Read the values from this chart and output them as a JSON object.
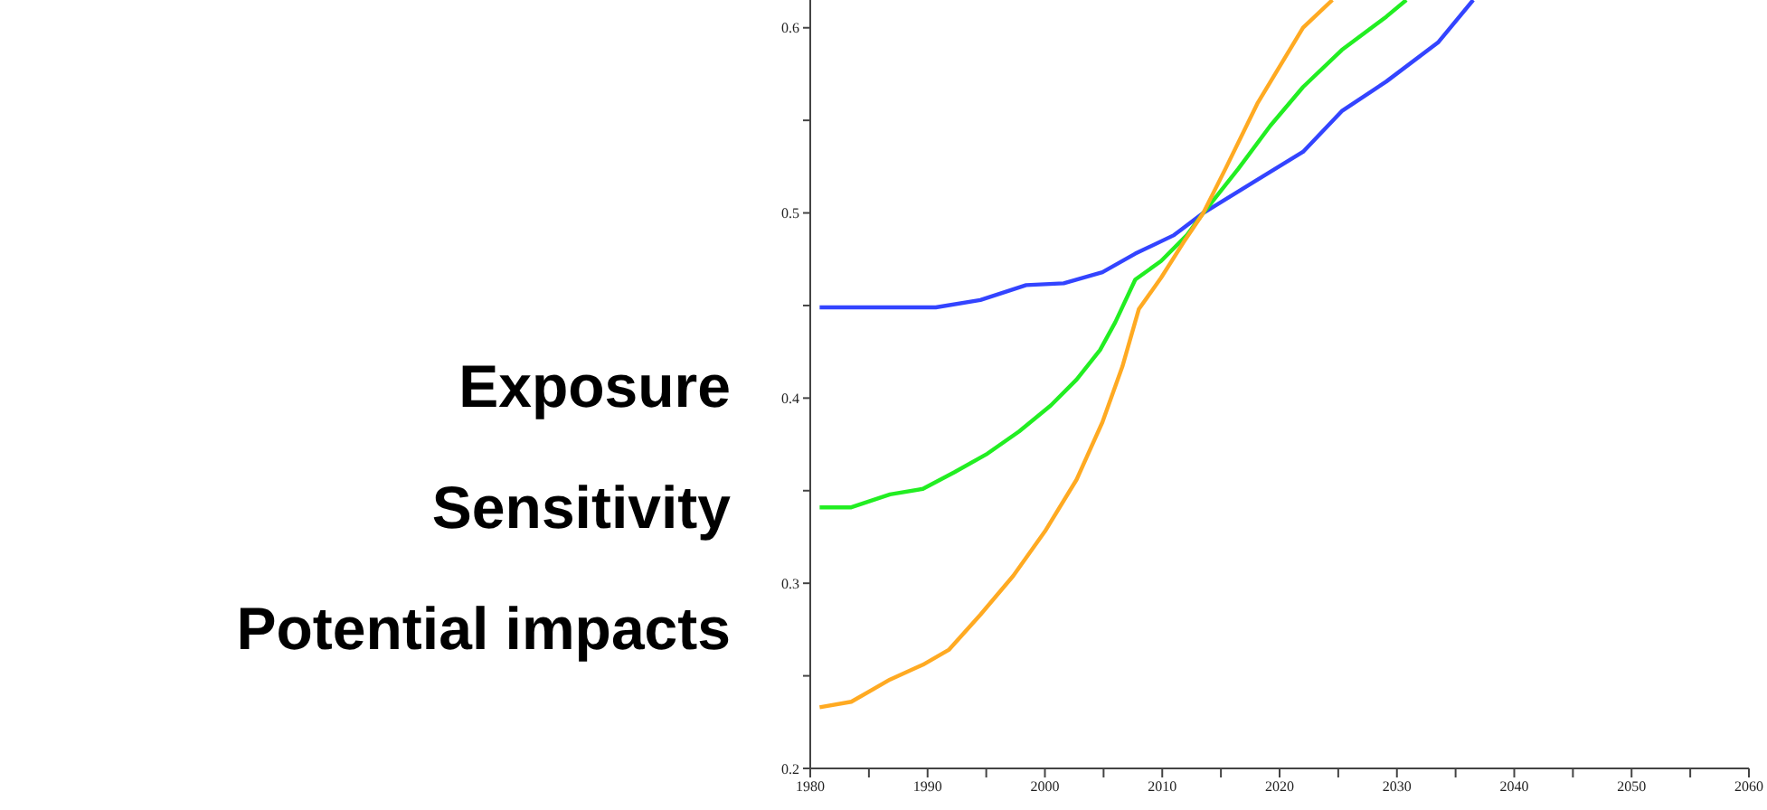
{
  "chart_data": {
    "type": "line",
    "xlim": [
      1980,
      2060
    ],
    "ylim": [
      0.2,
      0.615
    ],
    "xticks": [
      1980,
      {
        "value": 1985,
        "label": null
      },
      1990,
      {
        "value": 1995,
        "label": null
      },
      2000,
      {
        "value": 2005,
        "label": null
      },
      2010,
      {
        "value": 2015,
        "label": null
      },
      2020,
      {
        "value": 2025,
        "label": null
      },
      2030,
      {
        "value": 2035,
        "label": null
      },
      2040,
      {
        "value": 2045,
        "label": null
      },
      2050,
      {
        "value": 2055,
        "label": null
      },
      2060
    ],
    "yticks": [
      0.2,
      {
        "value": 0.25,
        "label": null
      },
      0.3,
      {
        "value": 0.35,
        "label": null
      },
      0.4,
      {
        "value": 0.45,
        "label": null
      },
      0.5,
      {
        "value": 0.55,
        "label": null
      },
      0.6
    ],
    "grid": false,
    "legend": false,
    "marker": "none",
    "line_style": "solid",
    "annotations": [
      "Exposure",
      "Sensitivity",
      "Potential impacts"
    ],
    "series": [
      {
        "color": "#3344ff",
        "x": [
          1980.8,
          1990.7,
          1994.5,
          1998.4,
          2001.6,
          2004.9,
          2007.7,
          2011,
          2013.5,
          2017.6,
          2022,
          2025.3,
          2029.1,
          2033.5,
          2036.5
        ],
        "values": [
          0.449,
          0.449,
          0.453,
          0.461,
          0.462,
          0.468,
          0.478,
          0.488,
          0.5,
          0.516,
          0.533,
          0.555,
          0.571,
          0.592,
          0.615
        ]
      },
      {
        "color": "#22ee22",
        "x": [
          1980.8,
          1983.5,
          1986.8,
          1989.6,
          1992.3,
          1995.1,
          1997.8,
          2000.5,
          2002.7,
          2004.7,
          2006,
          2007.7,
          2009.9,
          2012.1,
          2013.5,
          2016.5,
          2019.2,
          2022,
          2025.3,
          2029.1,
          2030.8
        ],
        "values": [
          0.341,
          0.341,
          0.348,
          0.351,
          0.36,
          0.37,
          0.382,
          0.396,
          0.41,
          0.426,
          0.441,
          0.464,
          0.474,
          0.488,
          0.5,
          0.524,
          0.547,
          0.568,
          0.588,
          0.606,
          0.615
        ]
      },
      {
        "color": "#ffaa22",
        "x": [
          1980.8,
          1983.5,
          1986.8,
          1989.6,
          1991.8,
          1994.5,
          1997.3,
          2000,
          2002.7,
          2004.9,
          2006.6,
          2008,
          2009.9,
          2011.8,
          2013.5,
          2015.4,
          2018.1,
          2022,
          2024.5
        ],
        "values": [
          0.233,
          0.236,
          0.248,
          0.256,
          0.264,
          0.283,
          0.304,
          0.328,
          0.356,
          0.387,
          0.417,
          0.448,
          0.465,
          0.484,
          0.5,
          0.524,
          0.559,
          0.6,
          0.615
        ]
      }
    ]
  }
}
